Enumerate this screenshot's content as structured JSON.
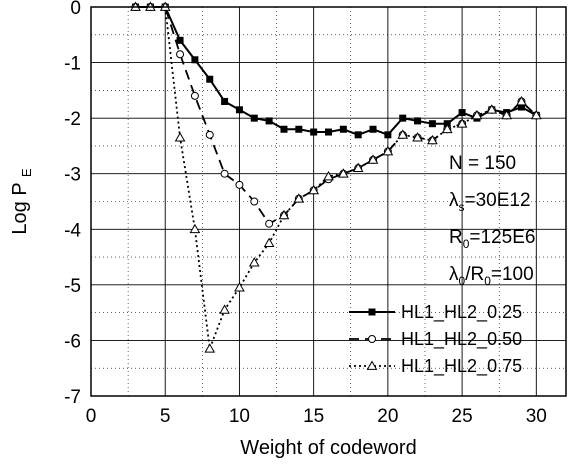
{
  "chart_data": {
    "type": "line",
    "xlabel": "Weight of codeword",
    "ylabel": {
      "main": "Log P",
      "sub": "E"
    },
    "xlim": [
      0,
      32
    ],
    "ylim": [
      -7,
      0
    ],
    "x_ticks": [
      0,
      5,
      10,
      15,
      20,
      25,
      30
    ],
    "y_ticks": [
      0,
      -1,
      -2,
      -3,
      -4,
      -5,
      -6,
      -7
    ],
    "grid": true,
    "legend_placement": "lower-right",
    "annotations": [
      {
        "main": "N = 150",
        "sub": "",
        "rest": ""
      },
      {
        "main": "λ",
        "sub": "s",
        "rest": "=30E12"
      },
      {
        "main": "R",
        "sub": "0",
        "rest": "=125E6"
      },
      {
        "main": "λ",
        "sub": "0",
        "rest": "/R",
        "sub2": "0",
        "rest2": "=100"
      }
    ],
    "series": [
      {
        "name": "HL1_HL2_0.25",
        "marker": "square-filled",
        "line_style": "solid",
        "x": [
          3,
          4,
          5,
          6,
          7,
          8,
          9,
          10,
          11,
          12,
          13,
          14,
          15,
          16,
          17,
          18,
          19,
          20,
          21,
          22,
          23,
          24,
          25,
          26,
          27,
          28,
          29,
          30
        ],
        "y": [
          0,
          0,
          0,
          -0.6,
          -0.95,
          -1.3,
          -1.7,
          -1.85,
          -2.0,
          -2.05,
          -2.2,
          -2.2,
          -2.25,
          -2.25,
          -2.2,
          -2.3,
          -2.2,
          -2.3,
          -2.0,
          -2.05,
          -2.1,
          -2.1,
          -1.9,
          -2.0,
          -1.85,
          -1.9,
          -1.8,
          -1.95
        ]
      },
      {
        "name": "HL1_HL2_0.50",
        "marker": "circle-open",
        "line_style": "dashed",
        "x": [
          3,
          4,
          5,
          6,
          7,
          8,
          9,
          10,
          11,
          12,
          13,
          14,
          15,
          16,
          17,
          18,
          19,
          20,
          21,
          22,
          23,
          24,
          25,
          26,
          27,
          28,
          29,
          30
        ],
        "y": [
          0,
          0,
          0,
          -0.85,
          -1.6,
          -2.3,
          -3.0,
          -3.2,
          -3.5,
          -3.9,
          -3.75,
          -3.45,
          -3.3,
          -3.1,
          -3.0,
          -2.9,
          -2.75,
          -2.6,
          -2.3,
          -2.35,
          -2.4,
          -2.2,
          -2.1,
          -1.95,
          -1.85,
          -1.95,
          -1.7,
          -1.95
        ]
      },
      {
        "name": "HL1_HL2_0.75",
        "marker": "triangle-open",
        "line_style": "dotted",
        "x": [
          3,
          4,
          5,
          6,
          7,
          8,
          9,
          10,
          11,
          12,
          13,
          14,
          15,
          16,
          17,
          18,
          19,
          20,
          21,
          22,
          23,
          24,
          25,
          26,
          27,
          28,
          29,
          30
        ],
        "y": [
          0,
          0,
          0,
          -2.35,
          -4.0,
          -6.15,
          -5.45,
          -5.05,
          -4.6,
          -4.25,
          -3.75,
          -3.45,
          -3.3,
          -3.05,
          -3.0,
          -2.9,
          -2.75,
          -2.6,
          -2.3,
          -2.35,
          -2.4,
          -2.2,
          -2.1,
          -1.95,
          -1.85,
          -1.95,
          -1.7,
          -1.95
        ]
      }
    ]
  }
}
